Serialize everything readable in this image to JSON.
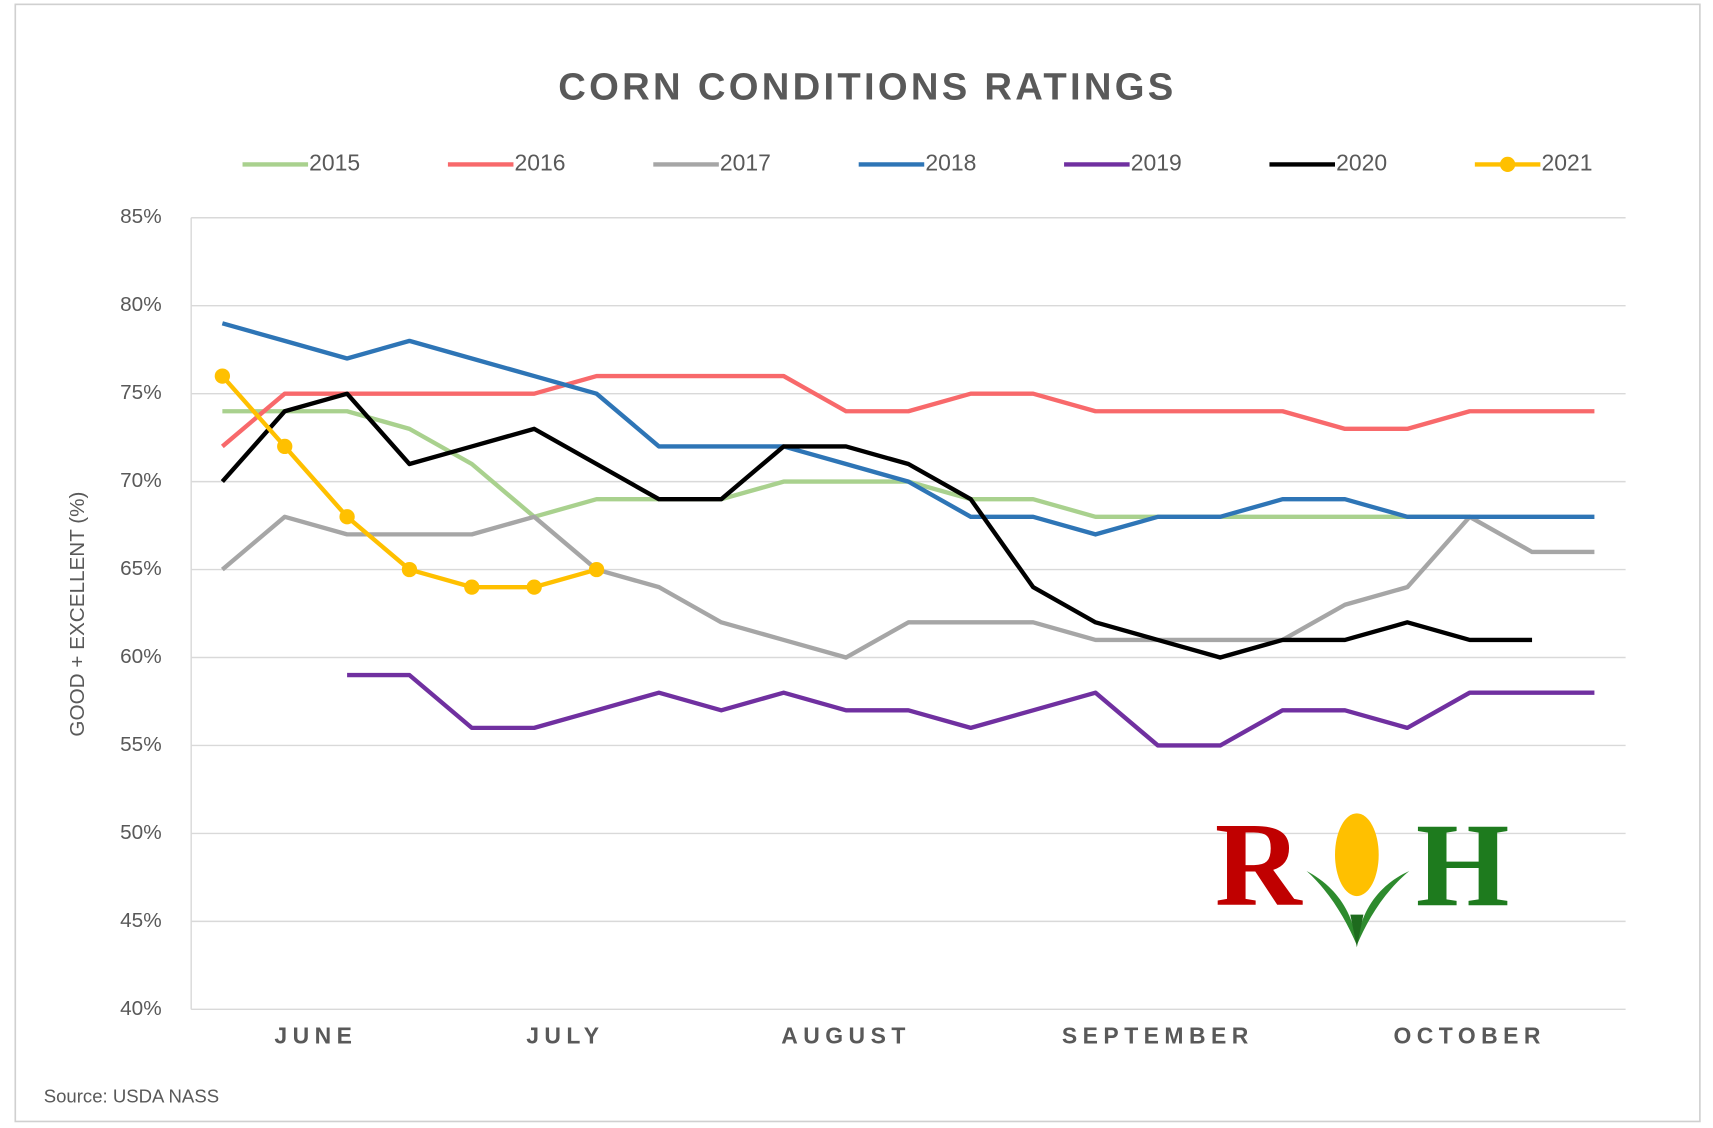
{
  "chart_data": {
    "type": "line",
    "title": "CORN CONDITIONS RATINGS",
    "y_label": "GOOD + EXCELLENT (%)",
    "source": "Source: USDA NASS",
    "logo": {
      "left": "R",
      "right": "H"
    },
    "categories": [
      "JUNE",
      "JUNE",
      "JUNE",
      "JUNE",
      "JULY",
      "JULY",
      "JULY",
      "JULY",
      "AUGUST",
      "AUGUST",
      "AUGUST",
      "AUGUST",
      "AUGUST",
      "SEPTEMBER",
      "SEPTEMBER",
      "SEPTEMBER",
      "SEPTEMBER",
      "SEPTEMBER",
      "OCTOBER",
      "OCTOBER",
      "OCTOBER",
      "OCTOBER",
      "OCTOBER"
    ],
    "ylim": [
      40,
      85
    ],
    "yticks": [
      {
        "value": 40,
        "label": "40%"
      },
      {
        "value": 45,
        "label": "45%"
      },
      {
        "value": 50,
        "label": "50%"
      },
      {
        "value": 55,
        "label": "55%"
      },
      {
        "value": 60,
        "label": "60%"
      },
      {
        "value": 65,
        "label": "65%"
      },
      {
        "value": 70,
        "label": "70%"
      },
      {
        "value": 75,
        "label": "75%"
      },
      {
        "value": 80,
        "label": "80%"
      },
      {
        "value": 85,
        "label": "85%"
      }
    ],
    "grid": true,
    "legend": "top",
    "series": [
      {
        "name": "2015",
        "color": "#a9d18e",
        "values": [
          74,
          74,
          74,
          73,
          71,
          68,
          69,
          69,
          69,
          70,
          70,
          70,
          69,
          69,
          68,
          68,
          68,
          68,
          68,
          68,
          68,
          null,
          null
        ]
      },
      {
        "name": "2016",
        "color": "#f8696b",
        "values": [
          72,
          75,
          75,
          75,
          75,
          75,
          76,
          76,
          76,
          76,
          74,
          74,
          75,
          75,
          74,
          74,
          74,
          74,
          73,
          73,
          74,
          74,
          74
        ]
      },
      {
        "name": "2017",
        "color": "#a6a6a6",
        "values": [
          65,
          68,
          67,
          67,
          67,
          68,
          65,
          64,
          62,
          61,
          60,
          62,
          62,
          62,
          61,
          61,
          61,
          61,
          63,
          64,
          68,
          66,
          66
        ]
      },
      {
        "name": "2018",
        "color": "#2e75b6",
        "values": [
          79,
          78,
          77,
          78,
          77,
          76,
          75,
          72,
          72,
          72,
          71,
          70,
          68,
          68,
          67,
          68,
          68,
          69,
          69,
          68,
          68,
          68,
          68
        ]
      },
      {
        "name": "2019",
        "color": "#7030a0",
        "values": [
          null,
          null,
          59,
          59,
          56,
          56,
          57,
          58,
          57,
          58,
          57,
          57,
          56,
          57,
          58,
          55,
          55,
          57,
          57,
          56,
          58,
          58,
          58
        ]
      },
      {
        "name": "2020",
        "color": "#000000",
        "values": [
          70,
          74,
          75,
          71,
          72,
          73,
          71,
          69,
          69,
          72,
          72,
          71,
          69,
          64,
          62,
          61,
          60,
          61,
          61,
          62,
          61,
          61,
          null
        ]
      },
      {
        "name": "2021",
        "color": "#ffc000",
        "markers": true,
        "values": [
          76,
          72,
          68,
          65,
          64,
          64,
          65,
          null,
          null,
          null,
          null,
          null,
          null,
          null,
          null,
          null,
          null,
          null,
          null,
          null,
          null,
          null,
          null
        ]
      }
    ]
  }
}
